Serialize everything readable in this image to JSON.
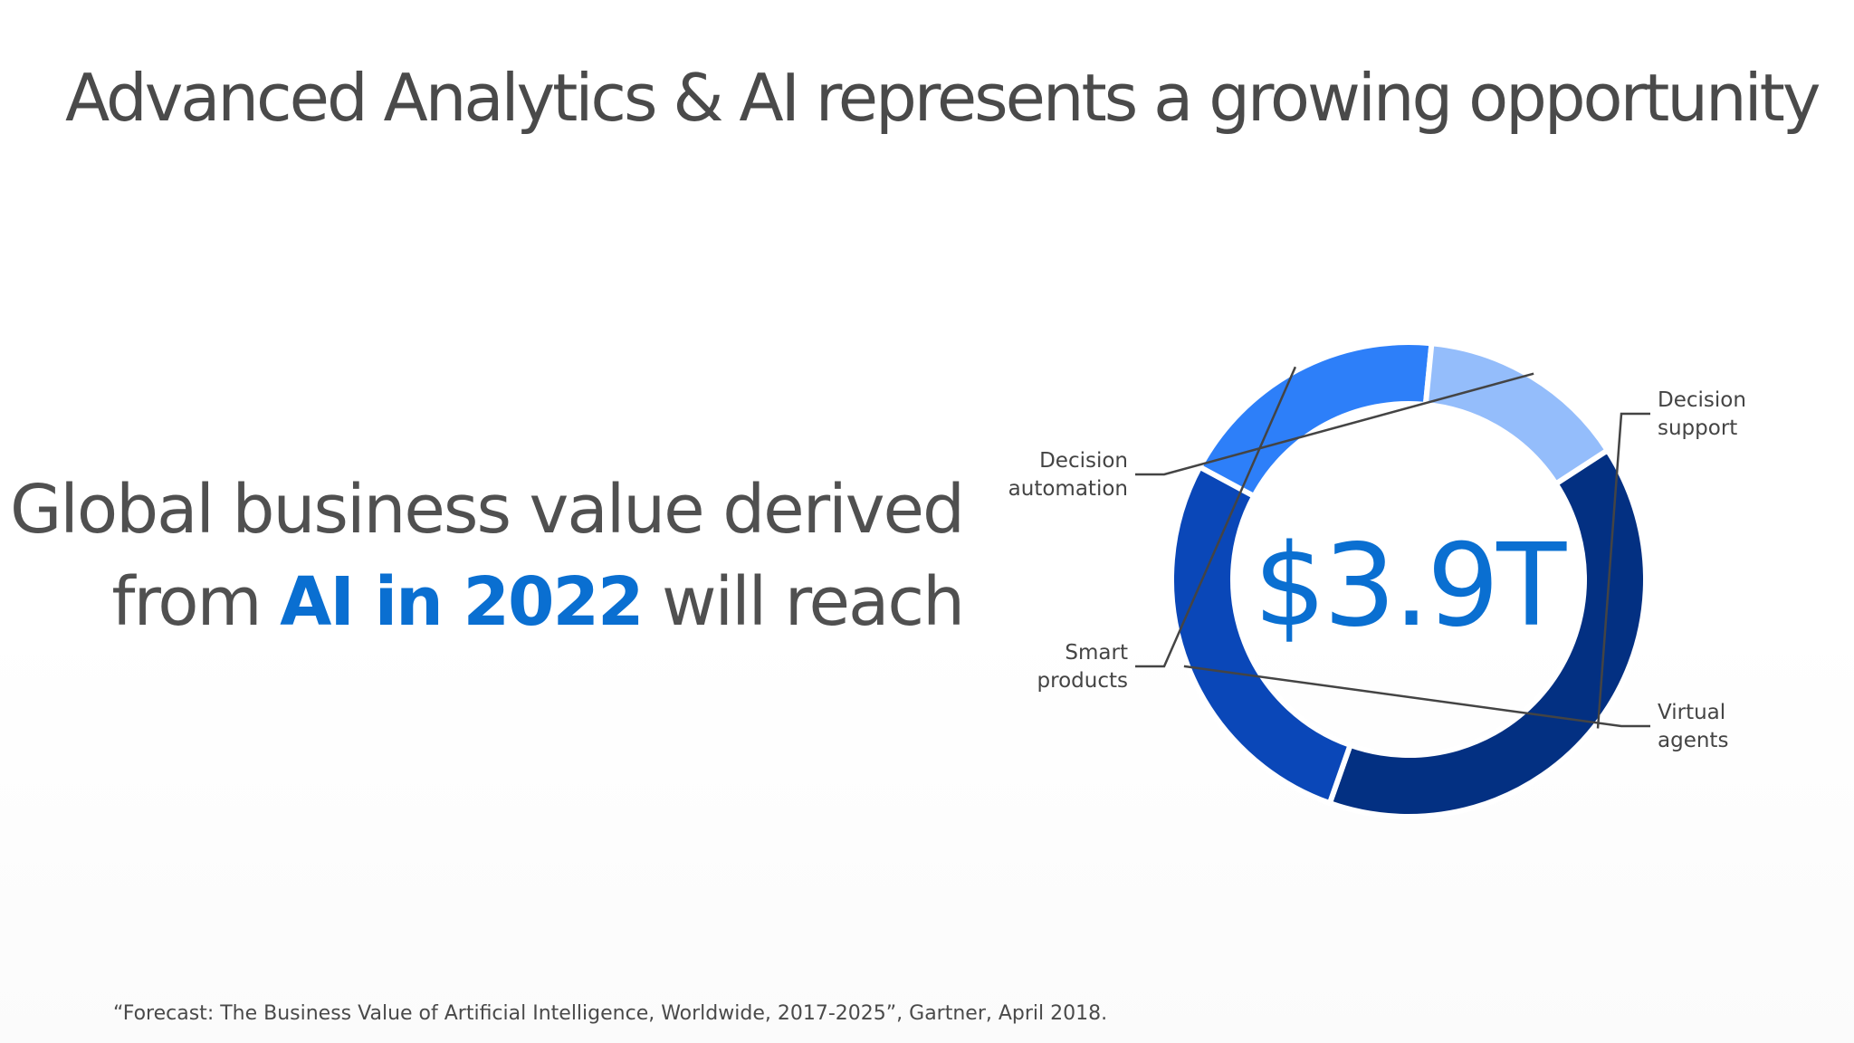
{
  "title": "Advanced Analytics & AI represents a growing opportunity",
  "headline": {
    "line1": "Global business value derived",
    "line2_pre": "from ",
    "line2_accent": "AI in 2022",
    "line2_post": " will reach"
  },
  "chart_data": {
    "type": "pie",
    "variant": "donut",
    "center_label": "$3.9T",
    "categories": [
      "Decision support",
      "Virtual agents",
      "Smart products",
      "Decision automation"
    ],
    "values": [
      36,
      25,
      17,
      13
    ],
    "labels": [
      [
        "Decision",
        "support"
      ],
      [
        "Virtual",
        "agents"
      ],
      [
        "Smart",
        "products"
      ],
      [
        "Decision",
        "automation"
      ]
    ],
    "colors": [
      "#033082",
      "#0a47b8",
      "#2d7ff9",
      "#94bdfb"
    ],
    "start_angle_deg": -33
  },
  "footnote": "“Forecast: The Business Value of Artificial Intelligence, Worldwide, 2017-2025”, Gartner, April 2018.",
  "colors": {
    "title_text": "#4a4a4a",
    "accent": "#0a6fd1"
  }
}
